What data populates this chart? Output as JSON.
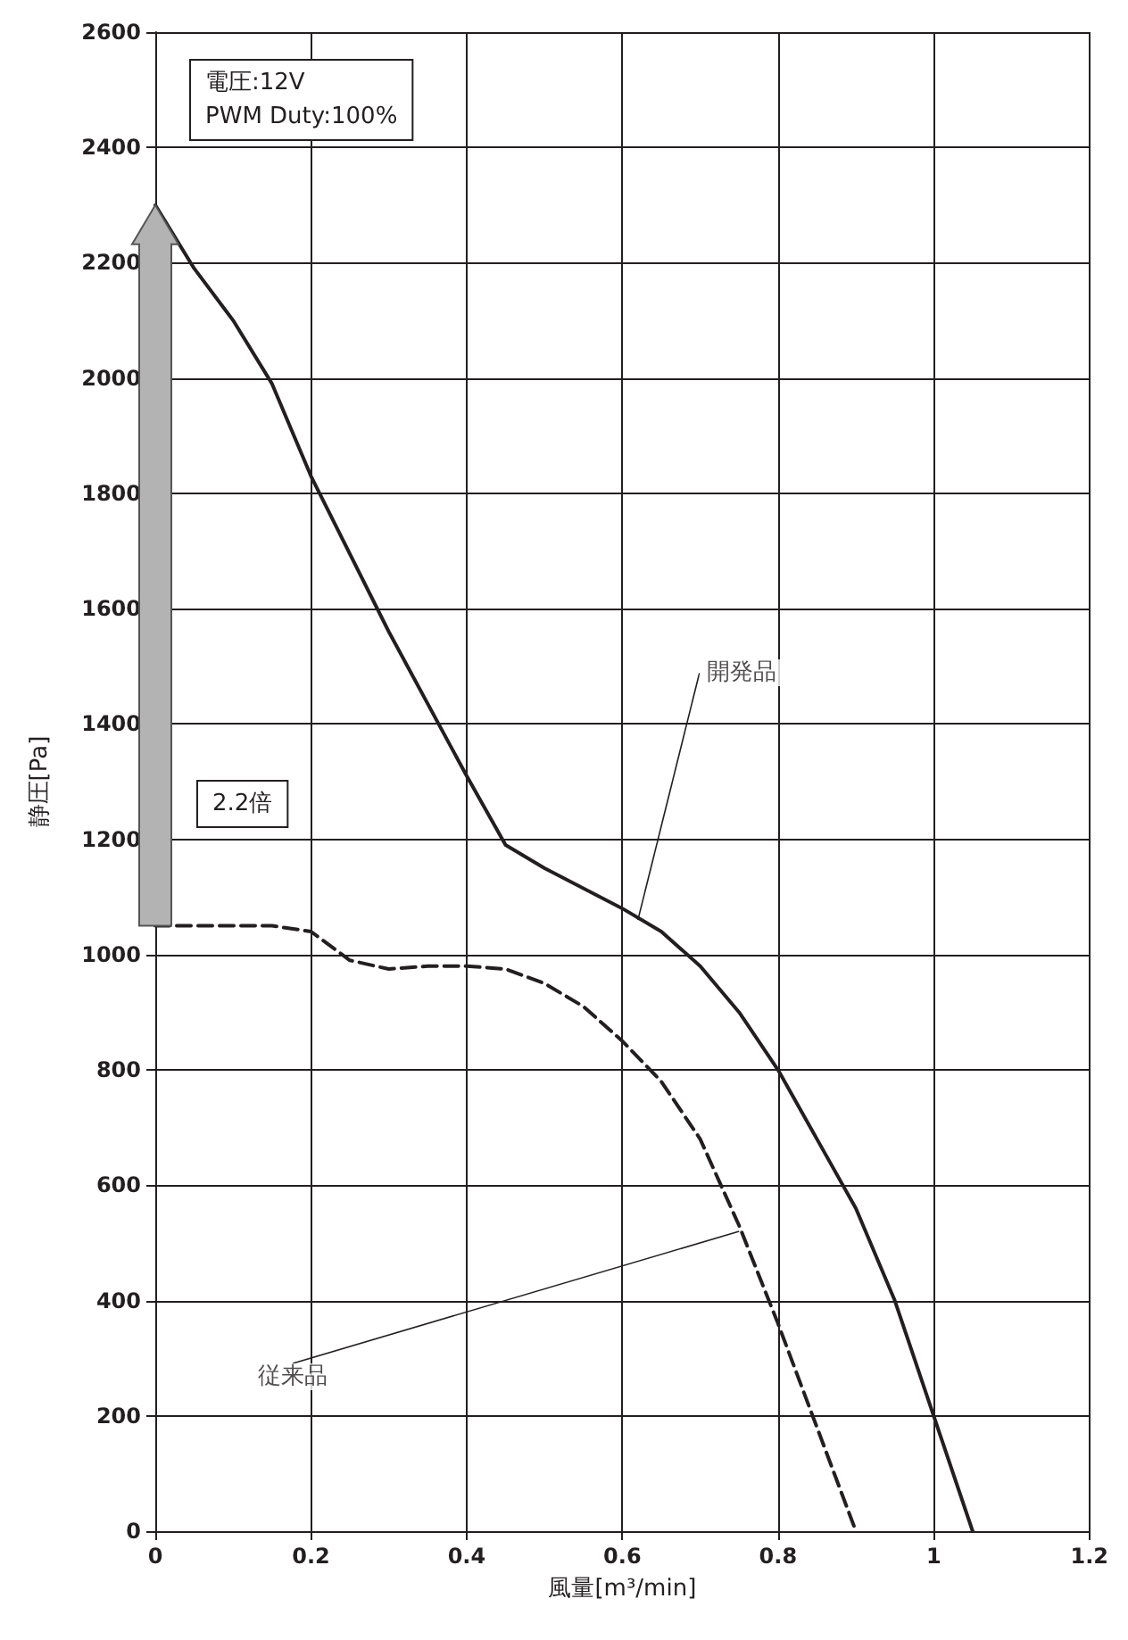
{
  "chart_data": {
    "type": "line",
    "xlabel": "風量[m³/min]",
    "ylabel": "静圧[Pa]",
    "xlim": [
      0,
      1.2
    ],
    "xticks": [
      0,
      0.2,
      0.4,
      0.6,
      0.8,
      1,
      1.2
    ],
    "ylim": [
      0,
      2600
    ],
    "yticks": [
      0,
      200,
      400,
      600,
      800,
      1000,
      1200,
      1400,
      1600,
      1800,
      2000,
      2200,
      2400,
      2600
    ],
    "grid": true,
    "marker": "none",
    "series": [
      {
        "color": "#231f20",
        "line_style": "solid",
        "x": [
          0,
          0.05,
          0.1,
          0.15,
          0.2,
          0.3,
          0.4,
          0.45,
          0.5,
          0.6,
          0.65,
          0.7,
          0.75,
          0.8,
          0.85,
          0.9,
          0.95,
          1.0,
          1.05
        ],
        "values": [
          2300,
          2190,
          2100,
          1990,
          1830,
          1560,
          1310,
          1190,
          1150,
          1080,
          1040,
          980,
          900,
          800,
          680,
          560,
          400,
          200,
          0
        ]
      },
      {
        "color": "#231f20",
        "line_style": "dashed",
        "x": [
          0,
          0.15,
          0.2,
          0.25,
          0.3,
          0.35,
          0.4,
          0.45,
          0.5,
          0.55,
          0.6,
          0.65,
          0.7,
          0.75,
          0.8,
          0.85,
          0.9
        ],
        "values": [
          1050,
          1050,
          1040,
          990,
          975,
          980,
          980,
          975,
          950,
          910,
          850,
          780,
          680,
          530,
          360,
          180,
          0
        ]
      }
    ],
    "annotations": [
      "電圧:12V\nPWM Duty:100%",
      "2.2倍",
      {
        "text": "開発品",
        "x": 0.62,
        "y": 1060
      },
      {
        "text": "従来品",
        "x": 0.75,
        "y": 520
      }
    ]
  }
}
